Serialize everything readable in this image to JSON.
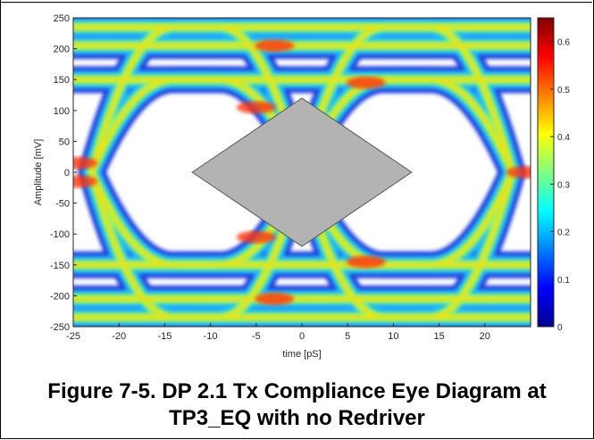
{
  "chart_data": {
    "type": "heatmap",
    "subtype": "eye-diagram",
    "title": "",
    "xlabel": "time [pS]",
    "ylabel": "Amplitude [mV]",
    "xlim": [
      -25,
      25
    ],
    "ylim": [
      -250,
      250
    ],
    "x_ticks": [
      -25,
      -20,
      -15,
      -10,
      -5,
      0,
      5,
      10,
      15,
      20
    ],
    "y_ticks": [
      250,
      200,
      150,
      100,
      50,
      0,
      -50,
      -100,
      -150,
      -200,
      -250
    ],
    "colorbar": {
      "colormap": "jet",
      "range": [
        0,
        0.65
      ],
      "ticks": [
        0.6,
        0.5,
        0.4,
        0.3,
        0.2,
        0.1,
        0
      ]
    },
    "signal_levels_mV": [
      235,
      205,
      150,
      -150,
      -205,
      -235
    ],
    "crossing_times_pS": [
      -23,
      0,
      23
    ],
    "mask": {
      "shape": "diamond",
      "x": [
        -12,
        0,
        12,
        0
      ],
      "y": [
        0,
        120,
        0,
        -120
      ],
      "color": "#b3b3b3"
    },
    "grid": false,
    "background": "#ffffff"
  },
  "caption": {
    "line1": "Figure 7-5. DP 2.1 Tx Compliance Eye Diagram at",
    "line2": "TP3_EQ with no Redriver"
  }
}
